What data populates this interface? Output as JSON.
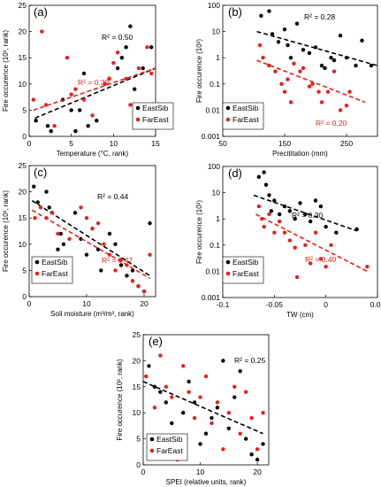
{
  "chart_data": [
    {
      "type": "scatter",
      "panel_label": "(a)",
      "xlabel": "Temperature (°C, rank)",
      "ylabel": "Fire occurence (10³, rank)",
      "xlim": [
        0,
        15
      ],
      "xticks": [
        0,
        5,
        10,
        15
      ],
      "ylim": [
        0,
        25
      ],
      "yticks": [
        0,
        5,
        10,
        15,
        20,
        25
      ],
      "yscale": "linear",
      "legend": "bottom-right",
      "series": [
        {
          "name": "EastSib",
          "color": "#000000",
          "points": [
            [
              0.8,
              3
            ],
            [
              2.2,
              2
            ],
            [
              2.6,
              1
            ],
            [
              4,
              7
            ],
            [
              5,
              5
            ],
            [
              5.5,
              1
            ],
            [
              6,
              5
            ],
            [
              6.5,
              12
            ],
            [
              7,
              2
            ],
            [
              8,
              3
            ],
            [
              9.5,
              11
            ],
            [
              10.5,
              13
            ],
            [
              11,
              15
            ],
            [
              11.5,
              17
            ],
            [
              12,
              21
            ],
            [
              12.5,
              9
            ],
            [
              13.5,
              13
            ],
            [
              14.5,
              17
            ],
            [
              15,
              5
            ]
          ],
          "trend": [
            [
              0.7,
              3.5
            ],
            [
              15,
              13
            ]
          ],
          "r2": "R² = 0.50",
          "r2_color": "#000000"
        },
        {
          "name": "FarEast",
          "color": "#e8201e",
          "points": [
            [
              0.5,
              7
            ],
            [
              1.5,
              20
            ],
            [
              2,
              6
            ],
            [
              3,
              2
            ],
            [
              4.5,
              15
            ],
            [
              5,
              8
            ],
            [
              5.5,
              9
            ],
            [
              6.5,
              7
            ],
            [
              7.5,
              4
            ],
            [
              9,
              10
            ],
            [
              9.5,
              11
            ],
            [
              10,
              14
            ],
            [
              10.5,
              16
            ],
            [
              11.5,
              11
            ],
            [
              12,
              6
            ],
            [
              13,
              13
            ],
            [
              14,
              17
            ],
            [
              14.5,
              12
            ]
          ],
          "trend": [
            [
              0.5,
              5
            ],
            [
              15,
              13
            ]
          ],
          "r2": "R² = 0.29",
          "r2_color": "#e8201e"
        }
      ]
    },
    {
      "type": "scatter",
      "panel_label": "(b)",
      "xlabel": "Precititation (mm)",
      "ylabel": "Fire occurence (10³)",
      "xlim": [
        50,
        300
      ],
      "xticks": [
        50,
        150,
        250
      ],
      "ylim": [
        0.001,
        100
      ],
      "yticks": [
        0.001,
        0.01,
        0.1,
        1,
        10,
        100
      ],
      "ytick_labels": [
        "0.001",
        "0.01",
        "0.1",
        "1",
        "10",
        "100"
      ],
      "yscale": "log",
      "legend": "bottom-left",
      "series": [
        {
          "name": "EastSib",
          "color": "#000000",
          "points": [
            [
              112,
              40
            ],
            [
              125,
              60
            ],
            [
              130,
              8
            ],
            [
              140,
              4
            ],
            [
              150,
              12
            ],
            [
              155,
              3
            ],
            [
              160,
              1
            ],
            [
              170,
              20
            ],
            [
              180,
              2
            ],
            [
              190,
              1.5
            ],
            [
              200,
              2.5
            ],
            [
              210,
              0.5
            ],
            [
              215,
              0.4
            ],
            [
              225,
              1
            ],
            [
              230,
              0.8
            ],
            [
              240,
              7
            ],
            [
              250,
              1
            ],
            [
              265,
              0.5
            ],
            [
              275,
              4.5
            ],
            [
              290,
              0.5
            ]
          ],
          "trend": [
            [
              105,
              10
            ],
            [
              300,
              0.5
            ]
          ],
          "r2": "R² = 0.28",
          "r2_color": "#000000"
        },
        {
          "name": "FarEast",
          "color": "#e8201e",
          "points": [
            [
              110,
              3
            ],
            [
              115,
              1
            ],
            [
              125,
              0.5
            ],
            [
              135,
              0.3
            ],
            [
              145,
              0.1
            ],
            [
              150,
              0.05
            ],
            [
              155,
              0.15
            ],
            [
              160,
              0.02
            ],
            [
              165,
              0.6
            ],
            [
              175,
              0.3
            ],
            [
              180,
              0.4
            ],
            [
              190,
              0.08
            ],
            [
              195,
              0.1
            ],
            [
              205,
              0.05
            ],
            [
              210,
              0.02
            ],
            [
              220,
              0.05
            ],
            [
              230,
              0.3
            ],
            [
              240,
              0.01
            ],
            [
              250,
              0.015
            ],
            [
              255,
              0.05
            ]
          ],
          "trend": [
            [
              105,
              0.8
            ],
            [
              280,
              0.02
            ]
          ],
          "r2": "R² = 0.20",
          "r2_color": "#e8201e"
        }
      ]
    },
    {
      "type": "scatter",
      "panel_label": "(c)",
      "xlabel": "Soil moisture (m³/m³, rank)",
      "ylabel": "Fire occurence (10³, rank)",
      "xlim": [
        0,
        22
      ],
      "xticks": [
        0,
        10,
        20
      ],
      "ylim": [
        0,
        25
      ],
      "yticks": [
        0,
        5,
        10,
        15,
        20,
        25
      ],
      "yscale": "linear",
      "legend": "bottom-left",
      "series": [
        {
          "name": "EastSib",
          "color": "#000000",
          "points": [
            [
              0.8,
              21
            ],
            [
              1.5,
              18
            ],
            [
              3,
              20
            ],
            [
              3.5,
              17
            ],
            [
              4,
              16
            ],
            [
              5,
              9
            ],
            [
              5.5,
              12
            ],
            [
              6,
              10
            ],
            [
              8,
              16
            ],
            [
              9,
              11
            ],
            [
              10,
              8
            ],
            [
              11,
              13
            ],
            [
              12,
              9
            ],
            [
              12.5,
              5
            ],
            [
              14,
              12
            ],
            [
              15,
              10
            ],
            [
              16,
              6
            ],
            [
              17,
              4
            ],
            [
              18,
              5
            ],
            [
              19,
              2
            ],
            [
              20,
              1
            ],
            [
              21,
              14
            ]
          ],
          "trend": [
            [
              0.5,
              18.3
            ],
            [
              21,
              4
            ]
          ],
          "r2": "R² = 0.44",
          "r2_color": "#000000"
        },
        {
          "name": "FarEast",
          "color": "#e8201e",
          "points": [
            [
              1,
              15
            ],
            [
              2,
              17
            ],
            [
              3,
              15
            ],
            [
              4,
              16
            ],
            [
              5,
              12
            ],
            [
              7,
              11
            ],
            [
              9,
              17
            ],
            [
              10,
              15
            ],
            [
              11,
              13
            ],
            [
              12,
              14
            ],
            [
              13,
              10
            ],
            [
              14,
              8
            ],
            [
              15,
              5
            ],
            [
              16,
              7
            ],
            [
              17,
              6
            ],
            [
              18,
              3
            ],
            [
              19,
              2
            ],
            [
              20,
              1
            ],
            [
              21,
              8
            ]
          ],
          "trend": [
            [
              0.5,
              16.5
            ],
            [
              21,
              3.5
            ]
          ],
          "r2": "R² = 0.47",
          "r2_color": "#e8201e"
        }
      ]
    },
    {
      "type": "scatter",
      "panel_label": "(d)",
      "xlabel": "TW (cm)",
      "ylabel": "Fire occurence (10³)",
      "xlim": [
        -0.1,
        0.05
      ],
      "xticks": [
        -0.1,
        -0.05,
        0,
        0.05
      ],
      "xtick_labels": [
        "-0.1",
        "-0.05",
        "0",
        "0.05"
      ],
      "ylim": [
        0.001,
        100
      ],
      "yticks": [
        0.001,
        0.01,
        0.1,
        1,
        10,
        100
      ],
      "ytick_labels": [
        "0.001",
        "0.01",
        "0.1",
        "1",
        "10",
        "100"
      ],
      "yscale": "log",
      "legend": "bottom-left",
      "series": [
        {
          "name": "EastSib",
          "color": "#000000",
          "points": [
            [
              -0.065,
              40
            ],
            [
              -0.06,
              60
            ],
            [
              -0.058,
              20
            ],
            [
              -0.055,
              8
            ],
            [
              -0.053,
              2
            ],
            [
              -0.05,
              5
            ],
            [
              -0.045,
              1.5
            ],
            [
              -0.04,
              3
            ],
            [
              -0.035,
              2
            ],
            [
              -0.03,
              1
            ],
            [
              -0.025,
              4
            ],
            [
              -0.02,
              1.5
            ],
            [
              -0.015,
              0.8
            ],
            [
              -0.01,
              5
            ],
            [
              -0.005,
              3
            ],
            [
              0,
              0.5
            ],
            [
              0.01,
              0.3
            ],
            [
              0.03,
              0.4
            ]
          ],
          "trend": [
            [
              -0.07,
              8
            ],
            [
              0.03,
              0.35
            ]
          ],
          "r2": "R² = 0.30",
          "r2_color": "#000000"
        },
        {
          "name": "FarEast",
          "color": "#e8201e",
          "points": [
            [
              -0.065,
              3
            ],
            [
              -0.062,
              1
            ],
            [
              -0.06,
              0.5
            ],
            [
              -0.055,
              1.5
            ],
            [
              -0.05,
              0.3
            ],
            [
              -0.045,
              0.8
            ],
            [
              -0.04,
              0.3
            ],
            [
              -0.035,
              0.15
            ],
            [
              -0.03,
              0.08
            ],
            [
              -0.028,
              0.006
            ],
            [
              -0.02,
              0.1
            ],
            [
              -0.015,
              0.02
            ],
            [
              -0.01,
              0.3
            ],
            [
              -0.005,
              0.03
            ],
            [
              0,
              0.015
            ],
            [
              0.005,
              0.1
            ],
            [
              0.04,
              0.015
            ]
          ],
          "trend": [
            [
              -0.068,
              1.5
            ],
            [
              0.04,
              0.01
            ]
          ],
          "r2": "R² = 0.40",
          "r2_color": "#e8201e"
        }
      ]
    },
    {
      "type": "scatter",
      "panel_label": "(e)",
      "xlabel": "SPEI (relative units, rank)",
      "ylabel": "Fire occurence (10³, rank)",
      "xlim": [
        0,
        22
      ],
      "xticks": [
        0,
        10,
        20
      ],
      "ylim": [
        0,
        25
      ],
      "yticks": [
        0,
        5,
        10,
        15,
        20,
        25
      ],
      "yscale": "linear",
      "legend": "bottom-left",
      "series": [
        {
          "name": "EastSib",
          "color": "#000000",
          "points": [
            [
              1,
              19
            ],
            [
              2,
              15
            ],
            [
              3,
              14
            ],
            [
              4,
              12
            ],
            [
              5,
              8
            ],
            [
              6,
              5
            ],
            [
              7,
              10
            ],
            [
              8,
              16
            ],
            [
              9,
              12
            ],
            [
              10,
              4
            ],
            [
              11,
              6
            ],
            [
              12,
              9
            ],
            [
              13,
              11
            ],
            [
              14,
              20
            ],
            [
              15,
              7
            ],
            [
              16,
              13
            ],
            [
              17,
              18
            ],
            [
              18,
              5
            ],
            [
              19,
              2
            ],
            [
              20,
              1
            ],
            [
              21,
              4
            ]
          ],
          "trend": [
            [
              0,
              16
            ],
            [
              21,
              6
            ]
          ],
          "r2": "R² = 0.25",
          "r2_color": "#000000"
        },
        {
          "name": "FarEast",
          "color": "#e8201e",
          "points": [
            [
              0.5,
              17
            ],
            [
              2,
              11
            ],
            [
              3,
              21
            ],
            [
              4,
              15
            ],
            [
              5,
              13
            ],
            [
              6,
              1
            ],
            [
              7,
              19
            ],
            [
              8,
              14
            ],
            [
              9,
              9
            ],
            [
              10,
              13
            ],
            [
              11,
              17
            ],
            [
              12,
              8
            ],
            [
              13,
              12
            ],
            [
              14,
              3
            ],
            [
              15,
              10
            ],
            [
              16,
              15
            ],
            [
              17,
              6
            ],
            [
              18,
              14
            ],
            [
              19,
              9
            ],
            [
              20,
              3
            ],
            [
              21,
              10
            ]
          ]
        }
      ]
    }
  ]
}
